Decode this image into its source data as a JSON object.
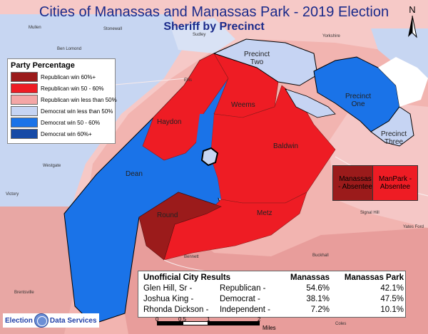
{
  "title": "Cities of Manassas and Manassas Park - 2019 Election",
  "subtitle": "Sheriff by Precinct",
  "north_label": "N",
  "legend": {
    "title": "Party Percentage",
    "items": [
      {
        "label": "Republican win 60%+",
        "color": "#9b1b1b"
      },
      {
        "label": "Republican win 50 - 60%",
        "color": "#ee1c24"
      },
      {
        "label": "Republican win less than 50%",
        "color": "#f4a6a6"
      },
      {
        "label": "Democrat win less than 50%",
        "color": "#c6d4f3"
      },
      {
        "label": "Democrat win 50 - 60%",
        "color": "#1a73e8"
      },
      {
        "label": "Democrat win 60%+",
        "color": "#164aa6"
      }
    ]
  },
  "precincts": {
    "haydon": "Haydon",
    "weems": "Weems",
    "baldwin": "Baldwin",
    "dean": "Dean",
    "round": "Round",
    "metz": "Metz",
    "precinct_two": "Precinct\nTwo",
    "precinct_one": "Precinct\nOne",
    "precinct_three": "Precinct\nThree"
  },
  "absentee": {
    "manassas": "Manassas\n- Absentee",
    "manpark": "ManPark -\nAbsentee"
  },
  "place_names": {
    "mullen": "Mullen",
    "stonewall": "Stonewall",
    "ben_lomond": "Ben Lomond",
    "sudley": "Sudley",
    "yorkshire": "Yorkshire",
    "ellis": "Ellis",
    "westgate": "Westgate",
    "victory": "Victory",
    "signal_hill": "Signal Hill",
    "yates_ford": "Yates Ford",
    "bennett": "Bennett",
    "buckhall": "Buckhall",
    "brentsville": "Brentsville",
    "coles": "Coles"
  },
  "results": {
    "heading": "Unofficial City Results",
    "col_manassas": "Manassas",
    "col_manassas_park": "Manassas Park",
    "rows": [
      {
        "candidate": "Glen Hill, Sr -",
        "party": "Republican -",
        "manassas": "54.6%",
        "manassas_park": "42.1%"
      },
      {
        "candidate": "Joshua King -",
        "party": "Democrat -",
        "manassas": "38.1%",
        "manassas_park": "47.5%"
      },
      {
        "candidate": "Rhonda Dickson -",
        "party": "Independent -",
        "manassas": "7.2%",
        "manassas_park": "10.1%"
      }
    ]
  },
  "logo": {
    "left": "Election",
    "right": "Data Services"
  },
  "scale": {
    "ticks": [
      "0",
      "0.5",
      "1",
      "2"
    ],
    "unit": "Miles"
  }
}
